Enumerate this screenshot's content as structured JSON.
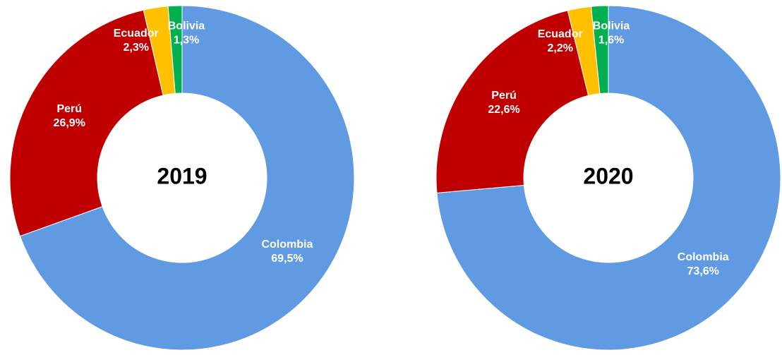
{
  "chart_data": [
    {
      "type": "donut",
      "title": "2019",
      "categories": [
        "Colombia",
        "Perú",
        "Ecuador",
        "Bolivia"
      ],
      "values": [
        69.5,
        26.9,
        2.3,
        1.3
      ],
      "value_labels": [
        "69,5%",
        "26,9%",
        "2,3%",
        "1,3%"
      ],
      "colors": [
        "#5f9ae2",
        "#c00000",
        "#ffc000",
        "#00b050"
      ]
    },
    {
      "type": "donut",
      "title": "2020",
      "categories": [
        "Colombia",
        "Perú",
        "Ecuador",
        "Bolivia"
      ],
      "values": [
        73.6,
        22.6,
        2.2,
        1.6
      ],
      "value_labels": [
        "73,6%",
        "22,6%",
        "2,2%",
        "1,6%"
      ],
      "colors": [
        "#5f9ae2",
        "#c00000",
        "#ffc000",
        "#00b050"
      ]
    }
  ]
}
